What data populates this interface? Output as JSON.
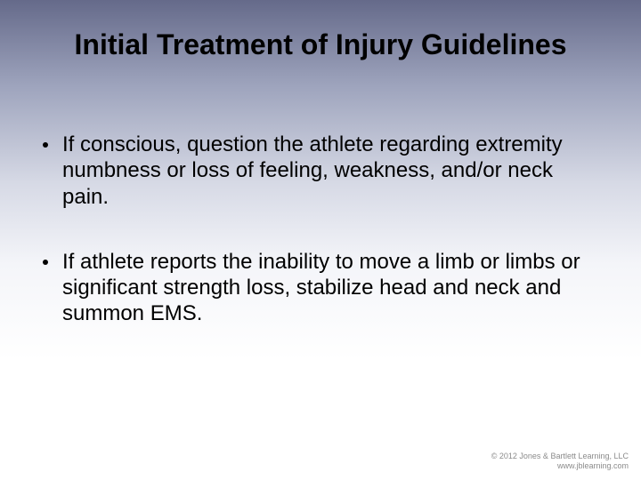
{
  "title": "Initial Treatment of Injury Guidelines",
  "title_fontsize": 32,
  "title_color": "#000000",
  "bullets": [
    "If conscious, question the athlete regarding extremity numbness or loss of feeling, weakness, and/or neck pain.",
    "If athlete reports the inability to move a limb or limbs or significant strength loss, stabilize head and neck and summon EMS."
  ],
  "bullet_fontsize": 24,
  "bullet_color": "#000000",
  "bullet_marker_color": "#000000",
  "footer": {
    "line1": "© 2012 Jones & Bartlett Learning, LLC",
    "line2": "www.jblearning.com",
    "fontsize": 9,
    "color": "#8b8b8b"
  },
  "background": {
    "gradient_top": "#656a8a",
    "gradient_bottom": "#ffffff"
  },
  "slide_width": 720,
  "slide_height": 540
}
